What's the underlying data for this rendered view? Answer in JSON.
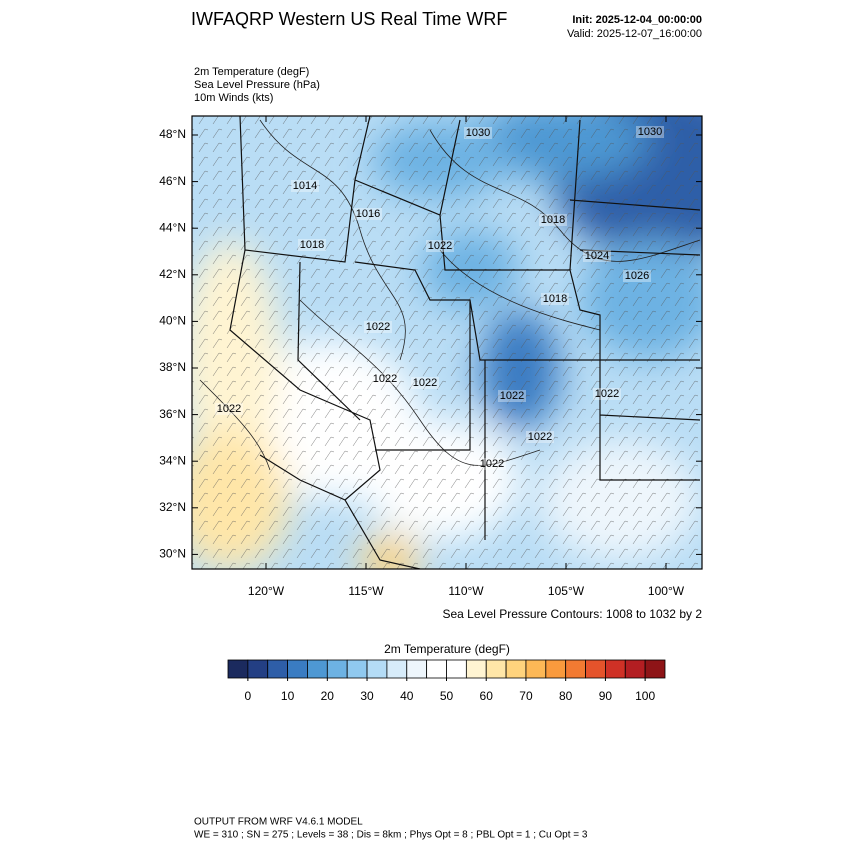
{
  "header": {
    "title": "IWFAQRP Western US Real Time WRF",
    "init": "Init: 2025-12-04_00:00:00",
    "valid": "Valid: 2025-12-07_16:00:00"
  },
  "fields": [
    "2m Temperature   (degF)",
    "Sea Level Pressure   (hPa)",
    "10m Winds   (kts)"
  ],
  "map": {
    "lat_ticks": [
      {
        "value": 48,
        "label": "48°N"
      },
      {
        "value": 46,
        "label": "46°N"
      },
      {
        "value": 44,
        "label": "44°N"
      },
      {
        "value": 42,
        "label": "42°N"
      },
      {
        "value": 40,
        "label": "40°N"
      },
      {
        "value": 38,
        "label": "38°N"
      },
      {
        "value": 36,
        "label": "36°N"
      },
      {
        "value": 34,
        "label": "34°N"
      },
      {
        "value": 32,
        "label": "32°N"
      },
      {
        "value": 30,
        "label": "30°N"
      }
    ],
    "lon_ticks": [
      {
        "value": -120,
        "label": "120°W"
      },
      {
        "value": -115,
        "label": "115°W"
      },
      {
        "value": -110,
        "label": "110°W"
      },
      {
        "value": -105,
        "label": "105°W"
      },
      {
        "value": -100,
        "label": "100°W"
      }
    ],
    "contour_note": "Sea Level Pressure Contours: 1008 to 1032 by 2",
    "contour_labels": [
      "1030",
      "1030",
      "1014",
      "1016",
      "1018",
      "1022",
      "1018",
      "1024",
      "1026",
      "1018",
      "1022",
      "1022",
      "1022",
      "1022",
      "1022",
      "1022",
      "1022",
      "1022"
    ]
  },
  "colorbar": {
    "title": "2m Temperature  (degF)",
    "ticks": [
      0,
      10,
      20,
      30,
      40,
      50,
      60,
      70,
      80,
      90,
      100
    ],
    "colors": [
      "#1b2a5e",
      "#233f84",
      "#2e5ea8",
      "#3a7cc2",
      "#4e98d3",
      "#6db2e3",
      "#90c9ef",
      "#b4dcf6",
      "#d7ecfa",
      "#eef6fc",
      "#ffffff",
      "#ffffff",
      "#fff4d2",
      "#ffe6a8",
      "#ffd37d",
      "#fdb856",
      "#f99a3d",
      "#f27a32",
      "#e5532b",
      "#cf3126",
      "#b31e22",
      "#8e1417"
    ]
  },
  "footer": [
    "OUTPUT FROM WRF V4.6.1 MODEL",
    "WE = 310 ; SN = 275 ; Levels = 38 ; Dis = 8km ; Phys Opt = 8 ; PBL Opt = 1 ; Cu Opt = 3"
  ]
}
